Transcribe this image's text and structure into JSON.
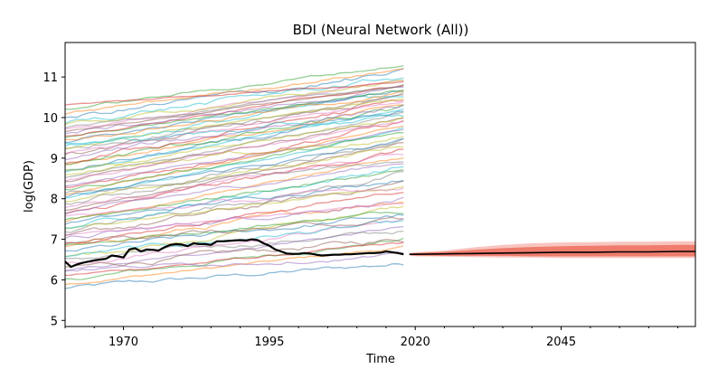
{
  "chart_data": {
    "type": "line",
    "title": "BDI (Neural Network (All))",
    "xlabel": "Time",
    "ylabel": "log(GDP)",
    "xlim": [
      1960,
      2068
    ],
    "ylim": [
      4.85,
      11.85
    ],
    "x_ticks": [
      1970,
      1995,
      2020,
      2045
    ],
    "y_ticks": [
      5,
      6,
      7,
      8,
      9,
      10,
      11
    ],
    "grid": false,
    "legend": "none",
    "background_series": {
      "count": 70,
      "x_range": [
        1960,
        2018
      ],
      "alpha": 0.5,
      "palette": [
        "#1f77b4",
        "#ff7f0e",
        "#2ca02c",
        "#d62728",
        "#9467bd",
        "#8c564b",
        "#e377c2",
        "#7f7f7f",
        "#bcbd22",
        "#17becf"
      ],
      "start_values": [
        5.8,
        5.9,
        6.0,
        6.1,
        6.2,
        6.3,
        6.4,
        6.5,
        6.55,
        6.6,
        6.7,
        6.8,
        6.85,
        6.9,
        7.0,
        7.05,
        7.1,
        7.2,
        7.25,
        7.3,
        7.4,
        7.45,
        7.5,
        7.6,
        7.65,
        7.7,
        7.8,
        7.85,
        7.9,
        8.0,
        8.05,
        8.1,
        8.2,
        8.25,
        8.3,
        8.4,
        8.45,
        8.5,
        8.6,
        8.65,
        8.7,
        8.8,
        8.85,
        8.9,
        9.0,
        9.05,
        9.1,
        9.2,
        9.25,
        9.3,
        9.4,
        9.45,
        9.5,
        9.55,
        9.6,
        9.65,
        9.7,
        9.75,
        9.8,
        9.9,
        10.0,
        10.1,
        10.2,
        10.3,
        6.25,
        6.95,
        7.55,
        8.15,
        8.75,
        9.35
      ],
      "end_values": [
        6.4,
        6.8,
        7.0,
        6.9,
        7.3,
        7.0,
        7.5,
        7.2,
        7.8,
        7.4,
        7.6,
        8.0,
        7.7,
        8.2,
        8.0,
        8.4,
        7.9,
        8.6,
        8.3,
        8.8,
        8.5,
        9.0,
        8.7,
        9.2,
        8.9,
        9.4,
        9.1,
        9.5,
        9.3,
        9.7,
        9.4,
        9.8,
        9.6,
        9.9,
        9.7,
        10.0,
        9.9,
        10.1,
        10.0,
        10.2,
        10.1,
        10.3,
        10.2,
        10.4,
        10.3,
        10.5,
        10.4,
        10.6,
        10.5,
        10.6,
        10.7,
        10.6,
        10.7,
        10.8,
        10.7,
        10.8,
        10.9,
        10.8,
        10.9,
        11.0,
        11.1,
        11.2,
        11.3,
        10.9,
        6.6,
        7.5,
        8.3,
        8.9,
        9.5,
        10.0
      ]
    },
    "highlight_series": {
      "name": "BDI",
      "color": "#000000",
      "x": [
        1960,
        1961,
        1962,
        1963,
        1964,
        1965,
        1966,
        1967,
        1968,
        1969,
        1970,
        1971,
        1972,
        1973,
        1974,
        1975,
        1976,
        1977,
        1978,
        1979,
        1980,
        1981,
        1982,
        1983,
        1984,
        1985,
        1986,
        1987,
        1988,
        1989,
        1990,
        1991,
        1992,
        1993,
        1994,
        1995,
        1996,
        1997,
        1998,
        1999,
        2000,
        2001,
        2002,
        2003,
        2004,
        2005,
        2006,
        2007,
        2008,
        2009,
        2010,
        2011,
        2012,
        2013,
        2014,
        2015,
        2016,
        2017,
        2018
      ],
      "y": [
        6.45,
        6.32,
        6.38,
        6.42,
        6.45,
        6.48,
        6.5,
        6.52,
        6.6,
        6.58,
        6.55,
        6.75,
        6.78,
        6.7,
        6.75,
        6.74,
        6.72,
        6.8,
        6.86,
        6.88,
        6.87,
        6.83,
        6.9,
        6.88,
        6.88,
        6.86,
        6.95,
        6.95,
        6.96,
        6.97,
        6.98,
        6.97,
        7.0,
        6.98,
        6.9,
        6.84,
        6.75,
        6.7,
        6.65,
        6.64,
        6.64,
        6.66,
        6.65,
        6.62,
        6.6,
        6.61,
        6.62,
        6.62,
        6.63,
        6.63,
        6.64,
        6.65,
        6.66,
        6.66,
        6.67,
        6.7,
        6.68,
        6.66,
        6.63
      ]
    },
    "forecast": {
      "color": "#e8402a",
      "x": [
        2019,
        2020,
        2025,
        2030,
        2035,
        2040,
        2045,
        2050,
        2055,
        2060,
        2065,
        2068
      ],
      "median": [
        6.63,
        6.63,
        6.64,
        6.65,
        6.66,
        6.67,
        6.68,
        6.68,
        6.69,
        6.69,
        6.7,
        6.7
      ],
      "outer_band": [
        [
          6.6,
          6.66
        ],
        [
          6.58,
          6.68
        ],
        [
          6.57,
          6.72
        ],
        [
          6.56,
          6.8
        ],
        [
          6.55,
          6.86
        ],
        [
          6.55,
          6.9
        ],
        [
          6.54,
          6.92
        ],
        [
          6.54,
          6.93
        ],
        [
          6.54,
          6.94
        ],
        [
          6.54,
          6.94
        ],
        [
          6.54,
          6.95
        ],
        [
          6.54,
          6.95
        ]
      ],
      "inner_band": [
        [
          6.61,
          6.65
        ],
        [
          6.6,
          6.66
        ],
        [
          6.59,
          6.69
        ],
        [
          6.59,
          6.74
        ],
        [
          6.59,
          6.78
        ],
        [
          6.58,
          6.81
        ],
        [
          6.58,
          6.83
        ],
        [
          6.58,
          6.84
        ],
        [
          6.58,
          6.85
        ],
        [
          6.58,
          6.85
        ],
        [
          6.58,
          6.86
        ],
        [
          6.58,
          6.86
        ]
      ]
    }
  }
}
